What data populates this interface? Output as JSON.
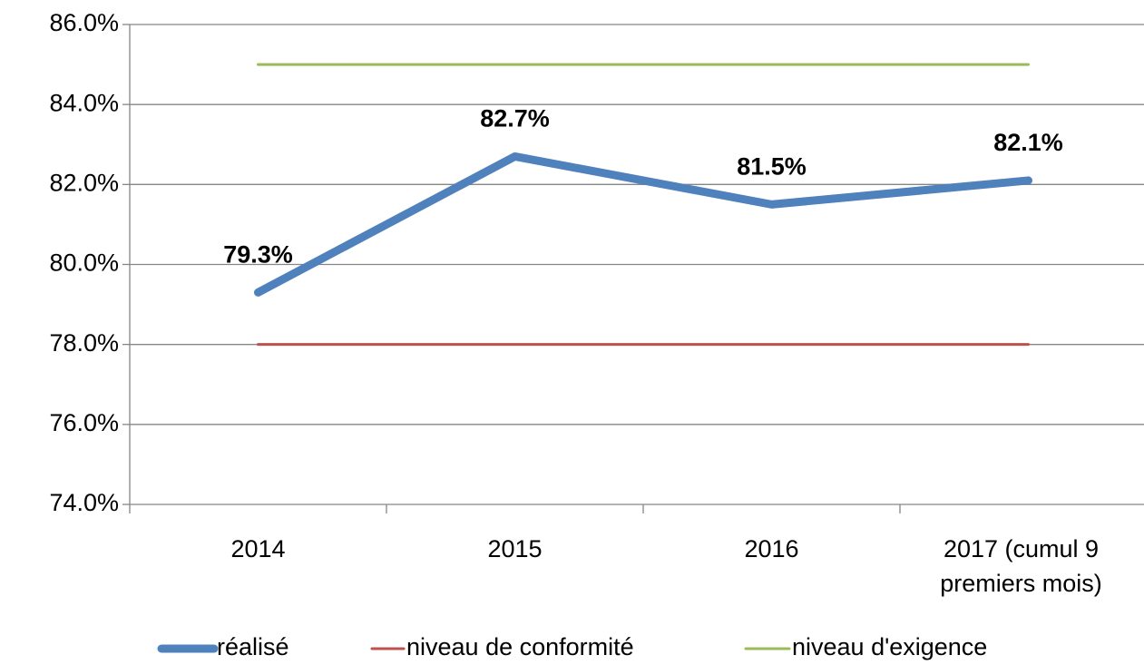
{
  "chart_data": {
    "type": "line",
    "categories": [
      "2014",
      "2015",
      "2016",
      "2017 (cumul 9 premiers mois)"
    ],
    "series": [
      {
        "name": "réalisé",
        "color": "#4f81bd",
        "values": [
          79.3,
          82.7,
          81.5,
          82.1
        ],
        "value_labels": [
          "79.3%",
          "82.7%",
          "81.5%",
          "82.1%"
        ]
      },
      {
        "name": "niveau de conformité",
        "color": "#c0504d",
        "values": [
          78,
          78,
          78,
          78
        ]
      },
      {
        "name": "niveau d'exigence",
        "color": "#9bbb59",
        "values": [
          85,
          85,
          85,
          85
        ]
      }
    ],
    "ylim": [
      74,
      86
    ],
    "yticks": [
      {
        "value": 74,
        "label": "74.0%"
      },
      {
        "value": 76,
        "label": "76.0%"
      },
      {
        "value": 78,
        "label": "78.0%"
      },
      {
        "value": 80,
        "label": "80.0%"
      },
      {
        "value": 82,
        "label": "82.0%"
      },
      {
        "value": 84,
        "label": "84.0%"
      },
      {
        "value": 86,
        "label": "86.0%"
      }
    ],
    "grid": true,
    "legend": "bottom"
  }
}
